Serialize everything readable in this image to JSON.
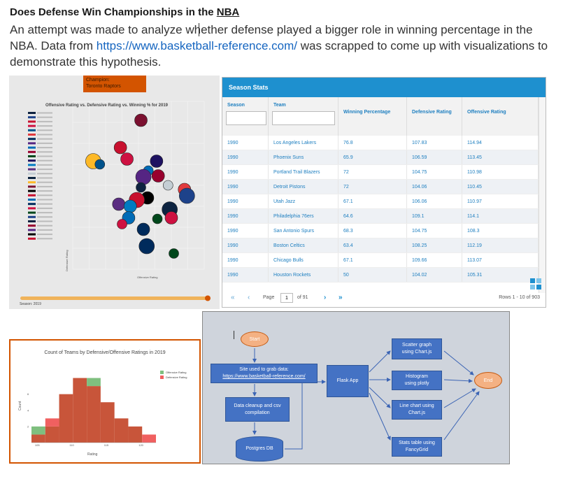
{
  "heading": {
    "text": "Does Defense Win Championships in the ",
    "link": "NBA"
  },
  "intro": {
    "before_url": "An attempt was made to analyze whether defense played a bigger role in winning percentage in the NBA. Data from ",
    "url": "https://www.basketball-reference.com/",
    "after_url": " was scrapped to come up with visualizations to demonstrate this hypothesis."
  },
  "scatter": {
    "champion_label": "Champion:",
    "champion_team": "Toronto Raptors",
    "title": "Offensive Rating vs. Defensive Rating vs. Winning % for 2019",
    "xlabel": "Offensive Rating",
    "ylabel": "Defensive Rating",
    "season_label": "Season: 2019"
  },
  "stats": {
    "header": "Season Stats",
    "columns": [
      "Season",
      "Team",
      "Winning Percentage",
      "Defensive Rating",
      "Offensive Rating"
    ],
    "rows": [
      [
        "1990",
        "Los Angeles Lakers",
        "76.8",
        "107.83",
        "114.94"
      ],
      [
        "1990",
        "Phoenix Suns",
        "65.9",
        "106.59",
        "113.45"
      ],
      [
        "1990",
        "Portland Trail Blazers",
        "72",
        "104.75",
        "110.98"
      ],
      [
        "1990",
        "Detroit Pistons",
        "72",
        "104.06",
        "110.45"
      ],
      [
        "1990",
        "Utah Jazz",
        "67.1",
        "106.06",
        "110.97"
      ],
      [
        "1990",
        "Philadelphia 76ers",
        "64.6",
        "109.1",
        "114.1"
      ],
      [
        "1990",
        "San Antonio Spurs",
        "68.3",
        "104.75",
        "108.3"
      ],
      [
        "1990",
        "Boston Celtics",
        "63.4",
        "108.25",
        "112.19"
      ],
      [
        "1990",
        "Chicago Bulls",
        "67.1",
        "109.66",
        "113.07"
      ],
      [
        "1990",
        "Houston Rockets",
        "50",
        "104.02",
        "105.31"
      ]
    ],
    "pager": {
      "page_label": "Page",
      "page_value": "1",
      "of_label": "of 91",
      "rows_info": "Rows 1 - 10 of 903"
    }
  },
  "histogram": {
    "title": "Count of Teams by Defensive/Offensive Ratings in 2019",
    "legend": [
      "Offensive Rating",
      "Defensive Rating"
    ],
    "xlabel": "Rating",
    "ylabel": "Count",
    "colors": {
      "offensive": "#7fbf7f",
      "defensive": "#f06060",
      "overlap": "#c8553a"
    }
  },
  "flow": {
    "start": "Start",
    "site_label": "Site used to grab data:",
    "site_url": "https://www.basketball-reference.com/",
    "cleanup": "Data cleanup and csv compilation",
    "db": "Postgres DB",
    "flask": "Flask App",
    "scatter": "Scatter graph using Chart.js",
    "histogram": "Histogram using plotly",
    "line": "Line chart using Chart.js",
    "table": "Stats table using FancyGrid",
    "end": "End"
  },
  "chart_data": [
    {
      "type": "scatter",
      "title": "Offensive Rating vs. Defensive Rating vs. Winning % for 2019",
      "xlabel": "Offensive Rating",
      "ylabel": "Defensive Rating",
      "points": [
        {
          "x": 112.3,
          "y": 114.2,
          "color": "#7b1030"
        },
        {
          "x": 109.8,
          "y": 111.6,
          "color": "#c8102e"
        },
        {
          "x": 106.5,
          "y": 110.3,
          "color": "#fdb927"
        },
        {
          "x": 107.3,
          "y": 110.0,
          "color": "#00538c"
        },
        {
          "x": 110.6,
          "y": 110.5,
          "color": "#ce1141"
        },
        {
          "x": 114.2,
          "y": 110.3,
          "color": "#1d1160"
        },
        {
          "x": 113.2,
          "y": 109.4,
          "color": "#006bb6"
        },
        {
          "x": 114.4,
          "y": 108.9,
          "color": "#98002e"
        },
        {
          "x": 112.6,
          "y": 108.8,
          "color": "#552583"
        },
        {
          "x": 115.6,
          "y": 108.0,
          "color": "#c4ced4"
        },
        {
          "x": 117.6,
          "y": 107.6,
          "color": "#e03a3e"
        },
        {
          "x": 117.9,
          "y": 107.0,
          "color": "#1d428a"
        },
        {
          "x": 112.3,
          "y": 107.8,
          "color": "#0e2240"
        },
        {
          "x": 113.1,
          "y": 106.8,
          "color": "#000000"
        },
        {
          "x": 111.8,
          "y": 106.6,
          "color": "#c8102e"
        },
        {
          "x": 109.6,
          "y": 106.2,
          "color": "#5a2d81"
        },
        {
          "x": 111.0,
          "y": 106.0,
          "color": "#007ac1"
        },
        {
          "x": 115.8,
          "y": 105.7,
          "color": "#0c2340"
        },
        {
          "x": 114.3,
          "y": 104.8,
          "color": "#00471b"
        },
        {
          "x": 116.0,
          "y": 104.9,
          "color": "#ce1141"
        },
        {
          "x": 110.8,
          "y": 104.9,
          "color": "#006bb6"
        },
        {
          "x": 110.0,
          "y": 104.3,
          "color": "#ce1141"
        },
        {
          "x": 112.6,
          "y": 103.8,
          "color": "#002b5c"
        },
        {
          "x": 113.0,
          "y": 102.2,
          "color": "#002b5c"
        },
        {
          "x": 116.3,
          "y": 101.5,
          "color": "#00471b"
        }
      ]
    },
    {
      "type": "bar",
      "title": "Count of Teams by Defensive/Offensive Ratings in 2019",
      "xlabel": "Rating",
      "ylabel": "Count",
      "bin_edges": [
        104,
        106,
        108,
        110,
        112,
        114,
        116,
        118,
        120,
        122
      ],
      "series": [
        {
          "name": "Offensive Rating",
          "values": [
            2,
            2,
            6,
            8,
            8,
            5,
            3,
            2,
            0
          ]
        },
        {
          "name": "Defensive Rating",
          "values": [
            1,
            3,
            6,
            8,
            7,
            5,
            3,
            2,
            1
          ]
        }
      ]
    }
  ]
}
